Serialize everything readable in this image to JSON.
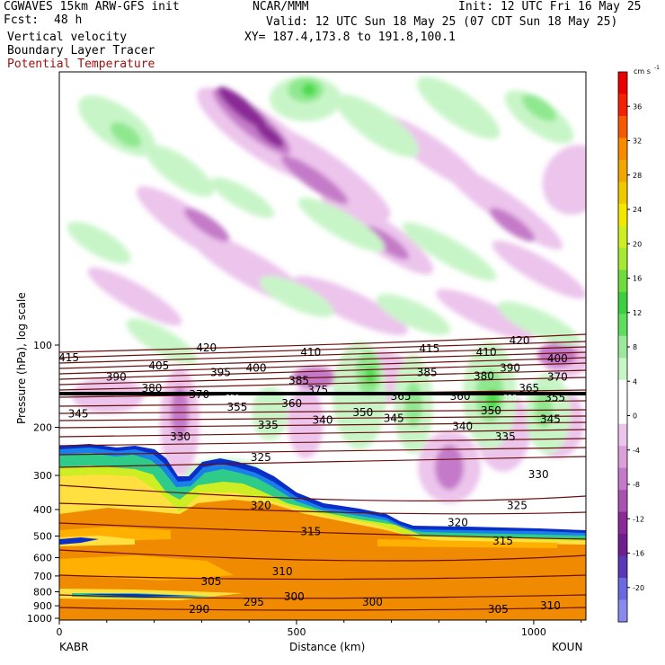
{
  "header": {
    "model": "CGWAVES 15km ARW-GFS init",
    "fcst_label": "Fcst:",
    "fcst_value": "48 h",
    "field1": "Vertical velocity",
    "field2": "Boundary Layer Tracer",
    "field3": "Potential Temperature",
    "org": "NCAR/MMM",
    "init": "Init: 12 UTC Fri 16 May 25",
    "valid": "Valid: 12 UTC Sun 18 May 25 (07 CDT Sun 18 May 25)",
    "xy": "XY= 187.4,173.8 to 191.8,100.1"
  },
  "colors": {
    "theta": "#6b0f0f",
    "pos": [
      "#c8f5c8",
      "#8fe88f",
      "#4cdc4c"
    ],
    "neg": [
      "#ecc4ec",
      "#d38bd3",
      "#b05ab5",
      "#8a2a96"
    ],
    "bl": [
      "#f08a00",
      "#ffb000",
      "#ffe040",
      "#ccee22",
      "#2ecc88",
      "#1a7fe8",
      "#0a2fc8"
    ]
  },
  "chart_data": {
    "type": "heatmap",
    "title": "Vertical velocity",
    "xlabel": "Distance (km)",
    "ylabel": "Pressure (hPa), log scale",
    "x_ticks": [
      0,
      500,
      1000
    ],
    "xlim": [
      0,
      1110
    ],
    "y_ticks": [
      100,
      200,
      300,
      400,
      500,
      600,
      700,
      800,
      900,
      1000
    ],
    "y_scale": "log",
    "start_station": "KABR",
    "end_station": "KOUN",
    "colorbar": {
      "units": "cm s",
      "units_exp": "-1",
      "ticks": [
        36,
        32,
        28,
        24,
        20,
        16,
        12,
        8,
        4,
        0,
        -4,
        -8,
        -12,
        -16,
        -20
      ],
      "colors": [
        "#e80000",
        "#f42000",
        "#f65a00",
        "#f88a00",
        "#f0a800",
        "#f0c800",
        "#f4e800",
        "#ccee22",
        "#a6e832",
        "#6fdc3c",
        "#3cd040",
        "#5edd5e",
        "#9ce89c",
        "#c8f5c8",
        "#ffffff",
        "#ffffff",
        "#ecc4ec",
        "#dba0db",
        "#c47ac8",
        "#aa52b0",
        "#8a2a96",
        "#6e1e8e",
        "#5a3ab4",
        "#6a6ae0",
        "#8a8aee"
      ]
    },
    "theta_labels": [
      {
        "v": "415",
        "x": 20,
        "p": 112
      },
      {
        "v": "420",
        "x": 310,
        "p": 103
      },
      {
        "v": "410",
        "x": 530,
        "p": 107
      },
      {
        "v": "415",
        "x": 780,
        "p": 104
      },
      {
        "v": "410",
        "x": 900,
        "p": 107
      },
      {
        "v": "420",
        "x": 970,
        "p": 97
      },
      {
        "v": "400",
        "x": 1050,
        "p": 113
      },
      {
        "v": "390",
        "x": 120,
        "p": 132
      },
      {
        "v": "405",
        "x": 210,
        "p": 120
      },
      {
        "v": "395",
        "x": 340,
        "p": 127
      },
      {
        "v": "400",
        "x": 415,
        "p": 122
      },
      {
        "v": "385",
        "x": 505,
        "p": 136
      },
      {
        "v": "385",
        "x": 775,
        "p": 127
      },
      {
        "v": "380",
        "x": 895,
        "p": 131
      },
      {
        "v": "390",
        "x": 950,
        "p": 122
      },
      {
        "v": "370",
        "x": 1050,
        "p": 132
      },
      {
        "v": "380",
        "x": 195,
        "p": 145
      },
      {
        "v": "370",
        "x": 295,
        "p": 153
      },
      {
        "v": "375",
        "x": 545,
        "p": 147
      },
      {
        "v": "365",
        "x": 990,
        "p": 145
      },
      {
        "v": "360",
        "x": 490,
        "p": 165
      },
      {
        "v": "365",
        "x": 720,
        "p": 155
      },
      {
        "v": "360",
        "x": 845,
        "p": 155
      },
      {
        "v": "355",
        "x": 1045,
        "p": 157
      },
      {
        "v": "345",
        "x": 40,
        "p": 180
      },
      {
        "v": "355",
        "x": 375,
        "p": 170
      },
      {
        "v": "350",
        "x": 640,
        "p": 178
      },
      {
        "v": "350",
        "x": 910,
        "p": 175
      },
      {
        "v": "340",
        "x": 555,
        "p": 190
      },
      {
        "v": "345",
        "x": 705,
        "p": 187
      },
      {
        "v": "345",
        "x": 1035,
        "p": 188
      },
      {
        "v": "330",
        "x": 255,
        "p": 218
      },
      {
        "v": "335",
        "x": 440,
        "p": 198
      },
      {
        "v": "340",
        "x": 850,
        "p": 200
      },
      {
        "v": "335",
        "x": 940,
        "p": 218
      },
      {
        "v": "325",
        "x": 425,
        "p": 260
      },
      {
        "v": "330",
        "x": 1010,
        "p": 300
      },
      {
        "v": "320",
        "x": 425,
        "p": 390
      },
      {
        "v": "325",
        "x": 965,
        "p": 390
      },
      {
        "v": "320",
        "x": 840,
        "p": 450
      },
      {
        "v": "315",
        "x": 530,
        "p": 485
      },
      {
        "v": "315",
        "x": 935,
        "p": 525
      },
      {
        "v": "310",
        "x": 470,
        "p": 680
      },
      {
        "v": "305",
        "x": 320,
        "p": 740
      },
      {
        "v": "300",
        "x": 495,
        "p": 840
      },
      {
        "v": "300",
        "x": 660,
        "p": 880
      },
      {
        "v": "295",
        "x": 410,
        "p": 880
      },
      {
        "v": "290",
        "x": 295,
        "p": 935
      },
      {
        "v": "305",
        "x": 925,
        "p": 935
      },
      {
        "v": "310",
        "x": 1035,
        "p": 905
      }
    ],
    "tropopause_labels": [
      {
        "v": "350",
        "x": 365,
        "p": 155
      },
      {
        "v": "350",
        "x": 950,
        "p": 155
      }
    ]
  }
}
